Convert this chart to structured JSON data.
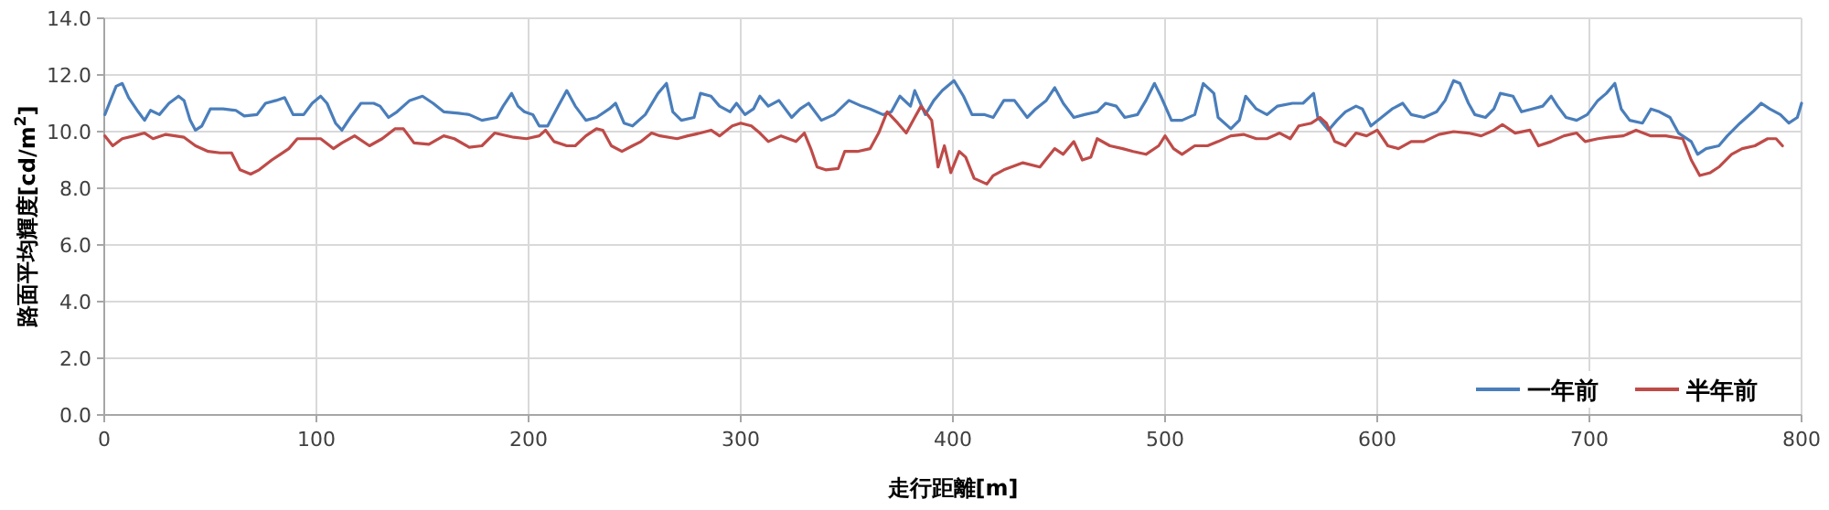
{
  "chart_data": {
    "type": "line",
    "xlabel": "走行距離[m]",
    "ylabel": "路面平均輝度[cd/m$^{2}$]",
    "xlim": [
      0,
      800
    ],
    "xticks": [
      0,
      100,
      200,
      300,
      400,
      500,
      600,
      700,
      800
    ],
    "ylim": [
      0,
      14
    ],
    "yticks": [
      {
        "value": 0,
        "label": "0.0"
      },
      {
        "value": 2,
        "label": "2.0"
      },
      {
        "value": 4,
        "label": "4.0"
      },
      {
        "value": 6,
        "label": "6.0"
      },
      {
        "value": 8,
        "label": "8.0"
      },
      {
        "value": 10,
        "label": "10.0"
      },
      {
        "value": 12,
        "label": "12.0"
      },
      {
        "value": 14,
        "label": "14.0"
      }
    ],
    "grid": true,
    "legend": "bottom right",
    "marker": "none",
    "line_style": "solid",
    "series": [
      {
        "name": "一年前",
        "color": "#4a7ebb",
        "x": [
          0.3,
          5.6,
          8.5,
          11.5,
          16,
          19,
          21.8,
          26,
          30.5,
          35,
          37.6,
          40.5,
          43,
          46,
          50,
          56,
          62,
          66,
          72,
          76,
          81,
          85,
          89,
          94,
          98,
          102,
          105,
          109,
          112,
          116,
          121,
          127,
          130,
          134,
          138,
          144,
          150,
          155,
          160,
          167,
          172,
          178,
          185,
          188,
          192,
          195,
          198,
          202,
          205,
          209,
          214,
          218,
          222,
          227,
          232,
          238,
          241,
          245,
          249,
          255,
          261,
          265,
          268,
          272,
          278,
          281,
          286,
          290,
          295,
          298,
          302,
          306,
          309,
          313,
          318,
          324,
          328,
          332,
          338,
          344,
          351,
          357,
          361,
          367,
          371,
          375,
          380,
          382,
          387,
          391,
          395,
          400.5,
          405,
          409,
          415,
          419,
          424,
          429,
          435,
          439,
          444,
          448,
          452,
          457,
          462,
          468,
          472,
          477,
          481,
          487,
          491,
          495,
          498,
          503,
          508,
          514,
          518,
          523,
          525,
          531,
          535,
          538,
          543,
          548,
          553,
          560,
          565,
          570,
          572,
          577,
          581,
          585,
          590,
          593,
          597,
          602,
          607,
          612,
          616,
          622,
          628,
          632,
          636,
          639,
          643,
          646,
          651,
          655,
          658,
          664,
          668,
          673,
          678,
          682,
          685,
          689,
          694,
          699,
          704,
          708,
          712,
          715,
          719,
          725,
          729,
          733,
          738,
          742,
          748,
          751,
          755,
          761,
          765,
          771,
          777,
          781,
          785,
          790,
          794,
          798,
          800
        ],
        "values": [
          10.6,
          11.6,
          11.7,
          11.2,
          10.7,
          10.4,
          10.75,
          10.6,
          11.0,
          11.25,
          11.1,
          10.4,
          10.05,
          10.2,
          10.8,
          10.8,
          10.75,
          10.55,
          10.6,
          11.0,
          11.1,
          11.2,
          10.6,
          10.6,
          11.0,
          11.25,
          11.0,
          10.3,
          10.05,
          10.5,
          11.0,
          11.0,
          10.9,
          10.5,
          10.7,
          11.1,
          11.25,
          11.0,
          10.7,
          10.65,
          10.6,
          10.4,
          10.5,
          10.9,
          11.35,
          10.9,
          10.7,
          10.6,
          10.2,
          10.2,
          10.9,
          11.45,
          10.9,
          10.4,
          10.5,
          10.8,
          11.0,
          10.3,
          10.2,
          10.6,
          11.35,
          11.7,
          10.7,
          10.4,
          10.5,
          11.35,
          11.25,
          10.9,
          10.7,
          11.0,
          10.6,
          10.8,
          11.25,
          10.9,
          11.1,
          10.5,
          10.8,
          11.0,
          10.4,
          10.6,
          11.1,
          10.9,
          10.8,
          10.6,
          10.7,
          11.25,
          10.9,
          11.45,
          10.6,
          11.1,
          11.45,
          11.8,
          11.25,
          10.6,
          10.6,
          10.5,
          11.1,
          11.1,
          10.5,
          10.8,
          11.1,
          11.55,
          11.0,
          10.5,
          10.6,
          10.7,
          11.0,
          10.9,
          10.5,
          10.6,
          11.1,
          11.7,
          11.25,
          10.4,
          10.4,
          10.6,
          11.7,
          11.35,
          10.5,
          10.1,
          10.4,
          11.25,
          10.8,
          10.6,
          10.9,
          11.0,
          11.0,
          11.35,
          10.5,
          10.05,
          10.4,
          10.7,
          10.9,
          10.8,
          10.2,
          10.5,
          10.8,
          11.0,
          10.6,
          10.5,
          10.7,
          11.1,
          11.8,
          11.7,
          11.0,
          10.6,
          10.5,
          10.8,
          11.35,
          11.25,
          10.7,
          10.8,
          10.9,
          11.25,
          10.9,
          10.5,
          10.4,
          10.6,
          11.1,
          11.35,
          11.7,
          10.8,
          10.4,
          10.3,
          10.8,
          10.7,
          10.5,
          9.95,
          9.65,
          9.2,
          9.4,
          9.5,
          9.85,
          10.3,
          10.7,
          11.0,
          10.8,
          10.6,
          10.3,
          10.5,
          11.0
        ]
      },
      {
        "name": "半年前",
        "color": "#be4b48",
        "x": [
          0.3,
          4,
          8.5,
          14,
          19,
          23,
          29,
          37.6,
          43,
          49,
          54.6,
          60,
          64,
          69,
          73,
          79,
          83,
          87,
          91,
          97,
          102,
          108,
          112,
          118,
          125,
          131,
          137,
          141,
          146,
          153,
          160,
          165,
          172,
          178,
          184,
          193,
          199,
          205,
          208,
          212,
          218,
          222,
          227,
          232,
          235,
          239,
          244,
          249,
          253,
          258,
          262,
          270,
          275,
          281,
          286,
          290,
          296,
          300,
          305,
          309,
          313,
          319,
          326,
          330,
          333,
          336,
          340,
          346,
          349,
          355,
          361,
          365,
          369,
          374,
          378,
          382,
          385,
          390,
          393,
          396,
          399,
          403,
          406,
          410,
          416,
          419,
          424,
          433,
          441,
          448,
          452,
          457,
          461,
          465,
          468,
          474,
          480,
          485,
          491,
          497,
          500,
          504,
          508,
          514,
          520,
          525,
          531,
          537,
          543,
          548,
          554,
          559,
          563,
          569,
          573,
          576,
          580,
          585,
          590,
          595,
          600,
          605,
          610,
          616,
          622,
          629,
          636,
          643,
          649,
          655,
          659,
          665,
          672,
          676,
          682,
          688,
          694,
          698,
          704,
          709,
          716,
          722,
          729,
          736,
          744,
          748,
          752,
          757,
          761,
          767,
          772,
          778,
          784,
          788,
          791
        ],
        "values": [
          9.85,
          9.5,
          9.75,
          9.85,
          9.95,
          9.75,
          9.9,
          9.8,
          9.5,
          9.3,
          9.25,
          9.25,
          8.65,
          8.5,
          8.65,
          9.0,
          9.2,
          9.4,
          9.75,
          9.75,
          9.75,
          9.4,
          9.6,
          9.85,
          9.5,
          9.75,
          10.1,
          10.1,
          9.6,
          9.55,
          9.85,
          9.75,
          9.45,
          9.5,
          9.95,
          9.8,
          9.75,
          9.85,
          10.05,
          9.65,
          9.5,
          9.5,
          9.85,
          10.1,
          10.05,
          9.5,
          9.3,
          9.5,
          9.65,
          9.95,
          9.85,
          9.75,
          9.85,
          9.95,
          10.05,
          9.85,
          10.2,
          10.3,
          10.2,
          9.95,
          9.65,
          9.85,
          9.65,
          9.95,
          9.4,
          8.75,
          8.65,
          8.7,
          9.3,
          9.3,
          9.4,
          9.95,
          10.7,
          10.3,
          9.95,
          10.5,
          10.9,
          10.4,
          8.75,
          9.5,
          8.55,
          9.3,
          9.1,
          8.35,
          8.15,
          8.45,
          8.65,
          8.9,
          8.75,
          9.4,
          9.2,
          9.65,
          9.0,
          9.1,
          9.75,
          9.5,
          9.4,
          9.3,
          9.2,
          9.5,
          9.85,
          9.4,
          9.2,
          9.5,
          9.5,
          9.65,
          9.85,
          9.9,
          9.75,
          9.75,
          9.95,
          9.75,
          10.2,
          10.3,
          10.5,
          10.3,
          9.65,
          9.5,
          9.95,
          9.85,
          10.05,
          9.5,
          9.4,
          9.65,
          9.65,
          9.9,
          10.0,
          9.95,
          9.85,
          10.05,
          10.25,
          9.95,
          10.05,
          9.5,
          9.65,
          9.85,
          9.95,
          9.65,
          9.75,
          9.8,
          9.85,
          10.05,
          9.85,
          9.85,
          9.75,
          9.0,
          8.45,
          8.55,
          8.75,
          9.2,
          9.4,
          9.5,
          9.75,
          9.75,
          9.5
        ]
      }
    ]
  }
}
